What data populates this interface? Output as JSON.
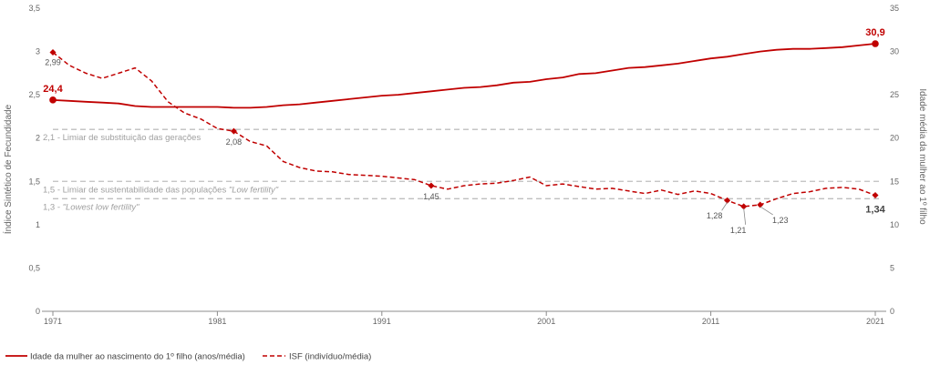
{
  "chart_data": {
    "type": "line",
    "y_left": {
      "label": "Índice Sintético de Fecundidade",
      "ylim": [
        0,
        3.5
      ],
      "ticks": [
        "0",
        "0,5",
        "1",
        "1,5",
        "2",
        "2,5",
        "3",
        "3,5"
      ],
      "tick_values": [
        0,
        0.5,
        1,
        1.5,
        2,
        2.5,
        3,
        3.5
      ]
    },
    "y_right": {
      "label": "Idade média da mulher ao 1º filho",
      "ylim": [
        0,
        35
      ],
      "ticks": [
        "0",
        "5",
        "10",
        "15",
        "20",
        "25",
        "30",
        "35"
      ],
      "tick_values": [
        0,
        5,
        10,
        15,
        20,
        25,
        30,
        35
      ]
    },
    "x_ticks": [
      "1971",
      "1981",
      "1991",
      "2001",
      "2011",
      "2021"
    ],
    "x_tick_values": [
      1971,
      1981,
      1991,
      2001,
      2011,
      2021
    ],
    "xlim": [
      1971,
      2021
    ],
    "reference_lines": [
      {
        "value": 2.1,
        "label": "2,1 - Limiar de substituição das gerações",
        "label_italic": ""
      },
      {
        "value": 1.5,
        "label": "1,5 - Limiar de sustentabilidade das populações ",
        "label_italic": "\"Low fertility\""
      },
      {
        "value": 1.3,
        "label": "1,3 - ",
        "label_italic": "\"Lowest low fertility\""
      }
    ],
    "series": [
      {
        "name": "Idade da mulher ao nascimento do 1º filho (anos/média)",
        "axis": "right",
        "style": "solid",
        "color": "#c00000",
        "x": [
          1971,
          1972,
          1973,
          1974,
          1975,
          1976,
          1977,
          1978,
          1979,
          1980,
          1981,
          1982,
          1983,
          1984,
          1985,
          1986,
          1987,
          1988,
          1989,
          1990,
          1991,
          1992,
          1993,
          1994,
          1995,
          1996,
          1997,
          1998,
          1999,
          2000,
          2001,
          2002,
          2003,
          2004,
          2005,
          2006,
          2007,
          2008,
          2009,
          2010,
          2011,
          2012,
          2013,
          2014,
          2015,
          2016,
          2017,
          2018,
          2019,
          2020,
          2021
        ],
        "values": [
          24.4,
          24.3,
          24.2,
          24.1,
          24.0,
          23.7,
          23.6,
          23.6,
          23.6,
          23.6,
          23.6,
          23.5,
          23.5,
          23.6,
          23.8,
          23.9,
          24.1,
          24.3,
          24.5,
          24.7,
          24.9,
          25.0,
          25.2,
          25.4,
          25.6,
          25.8,
          25.9,
          26.1,
          26.4,
          26.5,
          26.8,
          27.0,
          27.4,
          27.5,
          27.8,
          28.1,
          28.2,
          28.4,
          28.6,
          28.9,
          29.2,
          29.4,
          29.7,
          30.0,
          30.2,
          30.3,
          30.3,
          30.4,
          30.5,
          30.7,
          30.9
        ]
      },
      {
        "name": "ISF (indivíduo/média)",
        "axis": "left",
        "style": "dashed",
        "color": "#c00000",
        "x": [
          1971,
          1972,
          1973,
          1974,
          1975,
          1976,
          1977,
          1978,
          1979,
          1980,
          1981,
          1982,
          1983,
          1984,
          1985,
          1986,
          1987,
          1988,
          1989,
          1990,
          1991,
          1992,
          1993,
          1994,
          1995,
          1996,
          1997,
          1998,
          1999,
          2000,
          2001,
          2002,
          2003,
          2004,
          2005,
          2006,
          2007,
          2008,
          2009,
          2010,
          2011,
          2012,
          2013,
          2014,
          2015,
          2016,
          2017,
          2018,
          2019,
          2020,
          2021
        ],
        "values": [
          2.99,
          2.84,
          2.75,
          2.69,
          2.75,
          2.81,
          2.66,
          2.42,
          2.29,
          2.22,
          2.11,
          2.08,
          1.96,
          1.91,
          1.73,
          1.66,
          1.62,
          1.61,
          1.58,
          1.57,
          1.56,
          1.54,
          1.52,
          1.45,
          1.41,
          1.45,
          1.47,
          1.48,
          1.51,
          1.55,
          1.45,
          1.47,
          1.44,
          1.41,
          1.42,
          1.39,
          1.36,
          1.4,
          1.35,
          1.39,
          1.36,
          1.28,
          1.21,
          1.23,
          1.3,
          1.36,
          1.38,
          1.42,
          1.43,
          1.41,
          1.34
        ]
      }
    ],
    "point_labels": [
      {
        "series": 1,
        "x": 1971,
        "text": "2,99",
        "marker": "diamond",
        "dx": 0,
        "dy": 14,
        "anchor": "middle"
      },
      {
        "series": 1,
        "x": 1982,
        "text": "2,08",
        "marker": "diamond",
        "dx": 0,
        "dy": 15,
        "anchor": "middle"
      },
      {
        "series": 1,
        "x": 1994,
        "text": "1,45",
        "marker": "diamond",
        "dx": 0,
        "dy": 15,
        "anchor": "middle"
      },
      {
        "series": 1,
        "x": 2012,
        "text": "1,28",
        "marker": "diamond",
        "dx": -14,
        "dy": 20,
        "anchor": "middle"
      },
      {
        "series": 1,
        "x": 2013,
        "text": "1,21",
        "marker": "diamond",
        "dx": -6,
        "dy": 29,
        "anchor": "middle"
      },
      {
        "series": 1,
        "x": 2014,
        "text": "1,23",
        "marker": "diamond",
        "dx": 22,
        "dy": 20,
        "anchor": "middle"
      }
    ],
    "end_labels": [
      {
        "series": 0,
        "x": 1971,
        "text": "24,4",
        "dx": 0,
        "dy": -9,
        "anchor": "middle",
        "color": "#c00000"
      },
      {
        "series": 0,
        "x": 2021,
        "text": "30,9",
        "dx": 0,
        "dy": -9,
        "anchor": "middle",
        "color": "#c00000"
      },
      {
        "series": 1,
        "x": 2021,
        "text": "1,34",
        "dx": 0,
        "dy": 19,
        "anchor": "middle",
        "color": "#444444"
      }
    ],
    "legend": {
      "position": "bottom-left"
    },
    "grid": false
  }
}
